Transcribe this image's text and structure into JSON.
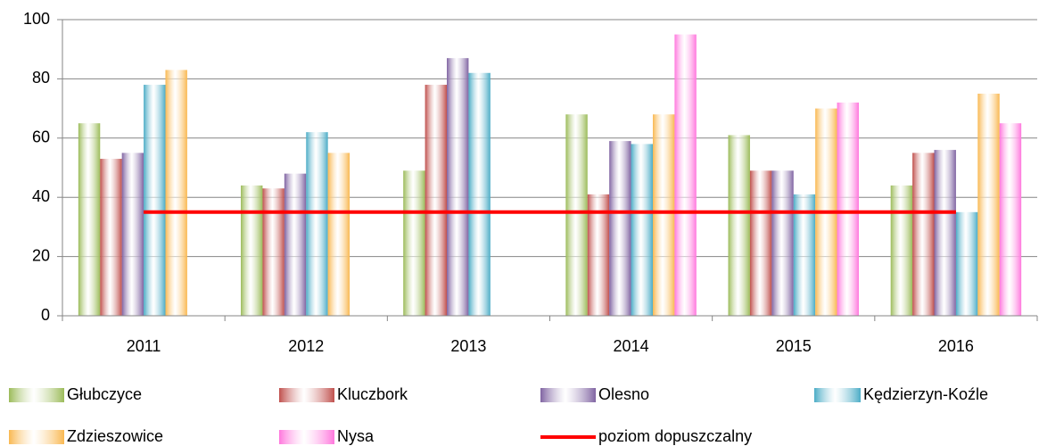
{
  "chart_data": {
    "type": "bar",
    "categories": [
      "2011",
      "2012",
      "2013",
      "2014",
      "2015",
      "2016"
    ],
    "series": [
      {
        "name": "Głubczyce",
        "color": "#9bbb59",
        "values": [
          65,
          44,
          49,
          68,
          61,
          44
        ]
      },
      {
        "name": "Kluczbork",
        "color": "#c0504d",
        "values": [
          53,
          43,
          78,
          41,
          49,
          55
        ]
      },
      {
        "name": "Olesno",
        "color": "#8064a2",
        "values": [
          55,
          48,
          87,
          59,
          49,
          56
        ]
      },
      {
        "name": "Kędzierzyn-Koźle",
        "color": "#4bacc6",
        "values": [
          78,
          62,
          82,
          58,
          41,
          35
        ]
      },
      {
        "name": "Zdzieszowice",
        "color": "#f9b851",
        "values": [
          83,
          55,
          null,
          68,
          70,
          75
        ]
      },
      {
        "name": "Nysa",
        "color": "#ff77dd",
        "values": [
          null,
          null,
          null,
          95,
          72,
          65
        ]
      },
      {
        "name": "poziom dopuszczalny",
        "type": "line",
        "color": "#ff0000",
        "values": [
          35,
          35,
          35,
          35,
          35,
          35
        ]
      }
    ],
    "ylim": [
      0,
      100
    ],
    "yticks": [
      0,
      20,
      40,
      60,
      80,
      100
    ],
    "grid": true,
    "legend": "bottom"
  }
}
